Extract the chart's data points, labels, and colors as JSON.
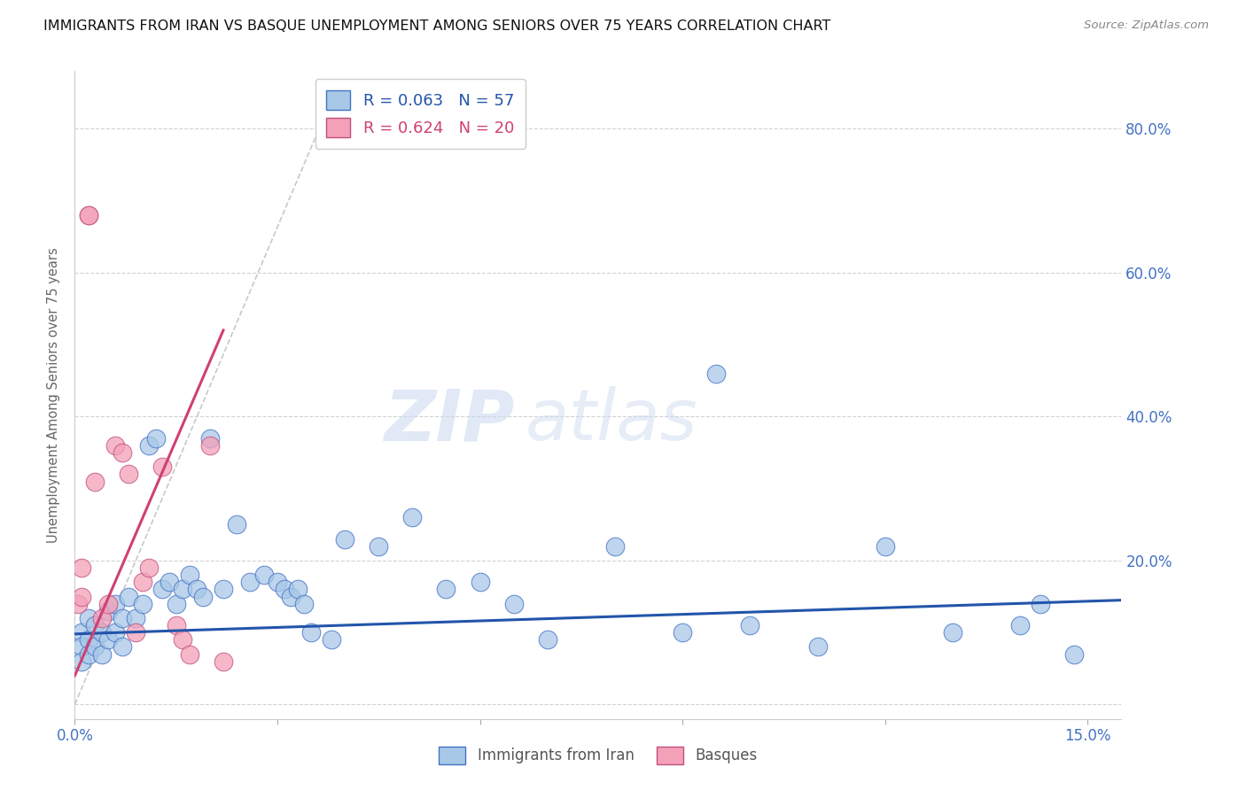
{
  "title": "IMMIGRANTS FROM IRAN VS BASQUE UNEMPLOYMENT AMONG SENIORS OVER 75 YEARS CORRELATION CHART",
  "source": "Source: ZipAtlas.com",
  "ylabel": "Unemployment Among Seniors over 75 years",
  "watermark_zip": "ZIP",
  "watermark_atlas": "atlas",
  "legend_blue_r": "R = 0.063",
  "legend_blue_n": "N = 57",
  "legend_pink_r": "R = 0.624",
  "legend_pink_n": "N = 20",
  "legend_blue_label": "Immigrants from Iran",
  "legend_pink_label": "Basques",
  "xlim": [
    0.0,
    0.155
  ],
  "ylim": [
    -0.02,
    0.88
  ],
  "yticks": [
    0.0,
    0.2,
    0.4,
    0.6,
    0.8
  ],
  "ytick_labels_right": [
    "",
    "20.0%",
    "40.0%",
    "60.0%",
    "80.0%"
  ],
  "xticks": [
    0.0,
    0.03,
    0.06,
    0.09,
    0.12,
    0.15
  ],
  "xtick_labels": [
    "0.0%",
    "",
    "",
    "",
    "",
    "15.0%"
  ],
  "blue_scatter_color": "#a8c8e8",
  "blue_edge_color": "#4472c4",
  "pink_scatter_color": "#f4a0b8",
  "pink_edge_color": "#c05080",
  "trend_blue_color": "#2255aa",
  "trend_pink_color": "#d04070",
  "grid_color": "#cccccc",
  "axis_label_color": "#4472c4",
  "blue_scatter_x": [
    0.001,
    0.001,
    0.001,
    0.002,
    0.002,
    0.002,
    0.003,
    0.003,
    0.004,
    0.004,
    0.005,
    0.005,
    0.006,
    0.006,
    0.007,
    0.007,
    0.008,
    0.009,
    0.01,
    0.011,
    0.012,
    0.013,
    0.014,
    0.015,
    0.016,
    0.017,
    0.018,
    0.019,
    0.02,
    0.022,
    0.024,
    0.026,
    0.028,
    0.03,
    0.031,
    0.032,
    0.033,
    0.034,
    0.035,
    0.038,
    0.04,
    0.045,
    0.05,
    0.055,
    0.06,
    0.065,
    0.07,
    0.08,
    0.09,
    0.095,
    0.1,
    0.11,
    0.12,
    0.13,
    0.14,
    0.143,
    0.148
  ],
  "blue_scatter_y": [
    0.1,
    0.08,
    0.06,
    0.12,
    0.09,
    0.07,
    0.11,
    0.08,
    0.1,
    0.07,
    0.13,
    0.09,
    0.14,
    0.1,
    0.12,
    0.08,
    0.15,
    0.12,
    0.14,
    0.36,
    0.37,
    0.16,
    0.17,
    0.14,
    0.16,
    0.18,
    0.16,
    0.15,
    0.37,
    0.16,
    0.25,
    0.17,
    0.18,
    0.17,
    0.16,
    0.15,
    0.16,
    0.14,
    0.1,
    0.09,
    0.23,
    0.22,
    0.26,
    0.16,
    0.17,
    0.14,
    0.09,
    0.22,
    0.1,
    0.46,
    0.11,
    0.08,
    0.22,
    0.1,
    0.11,
    0.14,
    0.07
  ],
  "pink_scatter_x": [
    0.0005,
    0.001,
    0.001,
    0.002,
    0.002,
    0.003,
    0.004,
    0.005,
    0.006,
    0.007,
    0.008,
    0.009,
    0.01,
    0.011,
    0.013,
    0.015,
    0.016,
    0.017,
    0.02,
    0.022
  ],
  "pink_scatter_y": [
    0.14,
    0.15,
    0.19,
    0.68,
    0.68,
    0.31,
    0.12,
    0.14,
    0.36,
    0.35,
    0.32,
    0.1,
    0.17,
    0.19,
    0.33,
    0.11,
    0.09,
    0.07,
    0.36,
    0.06
  ],
  "blue_trend_x": [
    0.0,
    0.155
  ],
  "blue_trend_y": [
    0.098,
    0.145
  ],
  "pink_trend_x": [
    0.0,
    0.022
  ],
  "pink_trend_y": [
    0.04,
    0.52
  ],
  "diag_line_x": [
    0.0,
    0.038
  ],
  "diag_line_y": [
    0.0,
    0.84
  ]
}
